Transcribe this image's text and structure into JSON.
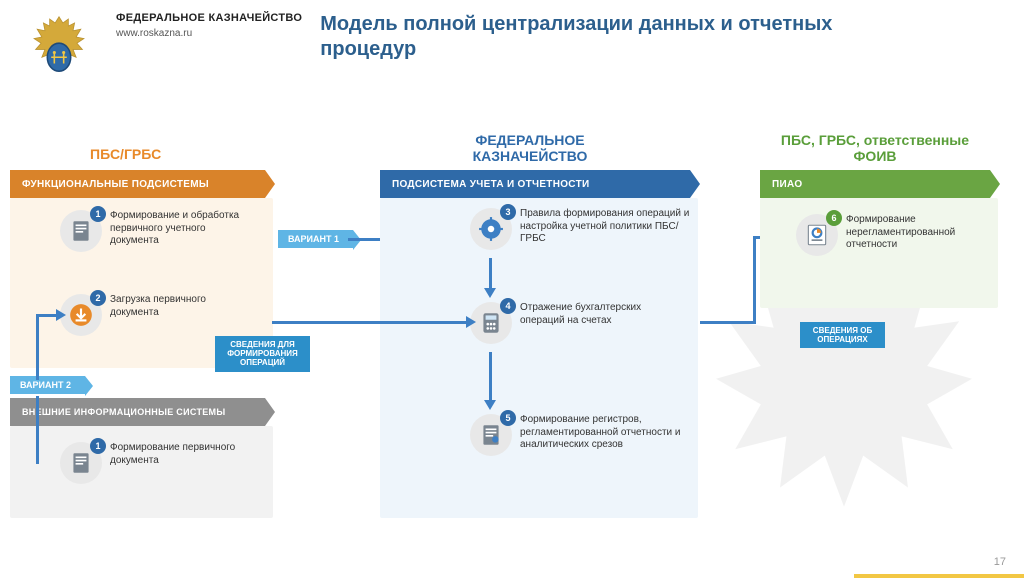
{
  "org": {
    "name": "ФЕДЕРАЛЬНОЕ КАЗНАЧЕЙСТВО",
    "url": "www.roskazna.ru"
  },
  "title": "Модель полной централизации данных и отчетных процедур",
  "columns": {
    "left": {
      "title": "ПБС/ГРБС",
      "color": "#e88a2a",
      "banner": "ФУНКЦИОНАЛЬНЫЕ ПОДСИСТЕМЫ",
      "banner_bg": "#d9832a",
      "panel_bg": "#fdf4e8"
    },
    "middle": {
      "title": "ФЕДЕРАЛЬНОЕ КАЗНАЧЕЙСТВО",
      "color": "#2f6aa8",
      "banner": "ПОДСИСТЕМА УЧЕТА И ОТЧЕТНОСТИ",
      "banner_bg": "#2f6aa8",
      "panel_bg": "#eef5fb"
    },
    "right": {
      "title": "ПБС, ГРБС, ответственные ФОИВ",
      "color": "#5a9e3a",
      "banner": "ПИАО",
      "banner_bg": "#6aa543",
      "panel_bg": "#f1f7ec"
    }
  },
  "vis_banner": {
    "label": "ВНЕШНИЕ ИНФОРМАЦИОННЫЕ СИСТЕМЫ",
    "bg": "#8f8f8f",
    "panel_bg": "#f2f2f2"
  },
  "steps": {
    "s1": {
      "n": "1",
      "text": "Формирование и обработка первичного учетного документа",
      "badge_bg": "#2f6aa8"
    },
    "s2": {
      "n": "2",
      "text": "Загрузка первичного документа",
      "badge_bg": "#2f6aa8"
    },
    "s3": {
      "n": "3",
      "text": "Правила формирования операций и настройка учетной политики ПБС/ГРБС",
      "badge_bg": "#2f6aa8"
    },
    "s4": {
      "n": "4",
      "text": "Отражение бухгалтерских операций на счетах",
      "badge_bg": "#2f6aa8"
    },
    "s5": {
      "n": "5",
      "text": "Формирование регистров, регламентированной отчетности и аналитических срезов",
      "badge_bg": "#2f6aa8"
    },
    "s6": {
      "n": "6",
      "text": "Формирование нерегламентированной отчетности",
      "badge_bg": "#5a9e3a"
    },
    "ext1": {
      "n": "1",
      "text": "Формирование первичного документа",
      "badge_bg": "#2f6aa8"
    }
  },
  "tags": {
    "variant1": "ВАРИАНТ 1",
    "variant2": "ВАРИАНТ 2",
    "flow1": "СВЕДЕНИЯ ДЛЯ ФОРМИРОВАНИЯ ОПЕРАЦИЙ",
    "flow2": "СВЕДЕНИЯ ОБ ОПЕРАЦИЯХ"
  },
  "page": "17",
  "colors": {
    "arrow": "#3d7fc4",
    "accent_yellow": "#f2c744"
  }
}
